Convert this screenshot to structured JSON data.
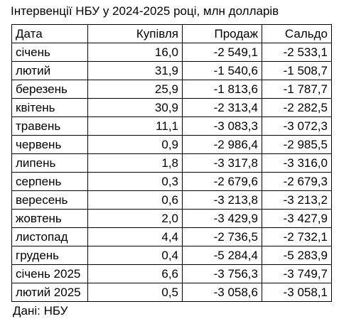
{
  "title": "Інтервенції НБУ у 2024-2025 році, млн долларів",
  "table": {
    "headers": [
      "Дата",
      "Купівля",
      "Продаж",
      "Сальдо"
    ],
    "rows": [
      [
        "січень",
        "16,0",
        "-2 549,1",
        "-2 533,1"
      ],
      [
        "лютий",
        "31,9",
        "-1 540,6",
        "-1 508,7"
      ],
      [
        "березень",
        "25,9",
        "-1 813,6",
        "-1 787,7"
      ],
      [
        "квітень",
        "30,9",
        "-2 313,4",
        "-2 282,5"
      ],
      [
        "травень",
        "11,1",
        "-3 083,3",
        "-3 072,3"
      ],
      [
        "червень",
        "0,9",
        "-2 986,4",
        "-2 985,5"
      ],
      [
        "липень",
        "1,8",
        "-3 317,8",
        "-3 316,0"
      ],
      [
        "серпень",
        "0,3",
        "-2 679,6",
        "-2 679,3"
      ],
      [
        "вересень",
        "0,6",
        "-3 213,8",
        "-3 213,2"
      ],
      [
        "жовтень",
        "2,0",
        "-3 429,9",
        "-3 427,9"
      ],
      [
        "листопад",
        "4,4",
        "-2 736,5",
        "-2 732,1"
      ],
      [
        "грудень",
        "0,4",
        "-5 284,4",
        "-5 283,9"
      ],
      [
        "січень 2025",
        "6,6",
        "-3 756,3",
        "-3 749,7"
      ],
      [
        "лютий 2025",
        "0,5",
        "-3 058,6",
        "-3 058,1"
      ]
    ]
  },
  "source": "Дані: НБУ"
}
